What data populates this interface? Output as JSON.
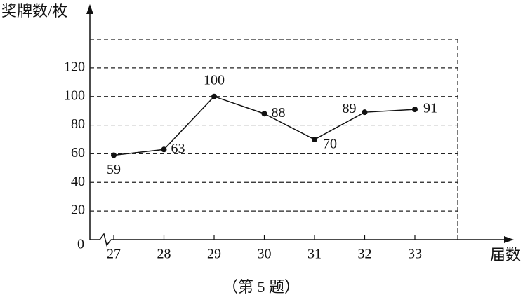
{
  "chart_data": {
    "type": "line",
    "y_label": "奖牌数/枚",
    "x_label": "届数",
    "caption": "（第 5 题）",
    "categories": [
      "27",
      "28",
      "29",
      "30",
      "31",
      "32",
      "33"
    ],
    "values": [
      59,
      63,
      100,
      88,
      70,
      89,
      91
    ],
    "color": "#111111",
    "ylim": [
      0,
      140
    ],
    "yticks": [
      0,
      20,
      40,
      60,
      80,
      100,
      120
    ],
    "grid": true
  }
}
